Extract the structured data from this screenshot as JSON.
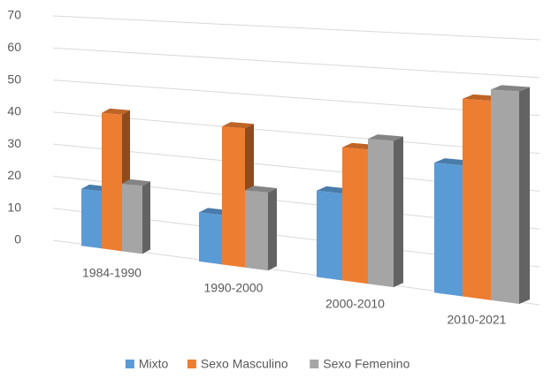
{
  "chart_data": {
    "type": "bar3d",
    "categories": [
      "1984-1990",
      "1990-2000",
      "2000-2010",
      "2010-2021"
    ],
    "series": [
      {
        "name": "Mixto",
        "color": "#5b9bd5",
        "values": [
          17,
          14,
          24,
          35
        ]
      },
      {
        "name": "Sexo Masculino",
        "color": "#ed7d31",
        "values": [
          41,
          40,
          37,
          53
        ]
      },
      {
        "name": "Sexo Femenino",
        "color": "#a5a5a5",
        "values": [
          20,
          22,
          40,
          56
        ]
      }
    ],
    "ylim": [
      0,
      70
    ],
    "yticks": [
      0,
      10,
      20,
      30,
      40,
      50,
      60,
      70
    ],
    "grid": true,
    "legend": "bottom"
  }
}
